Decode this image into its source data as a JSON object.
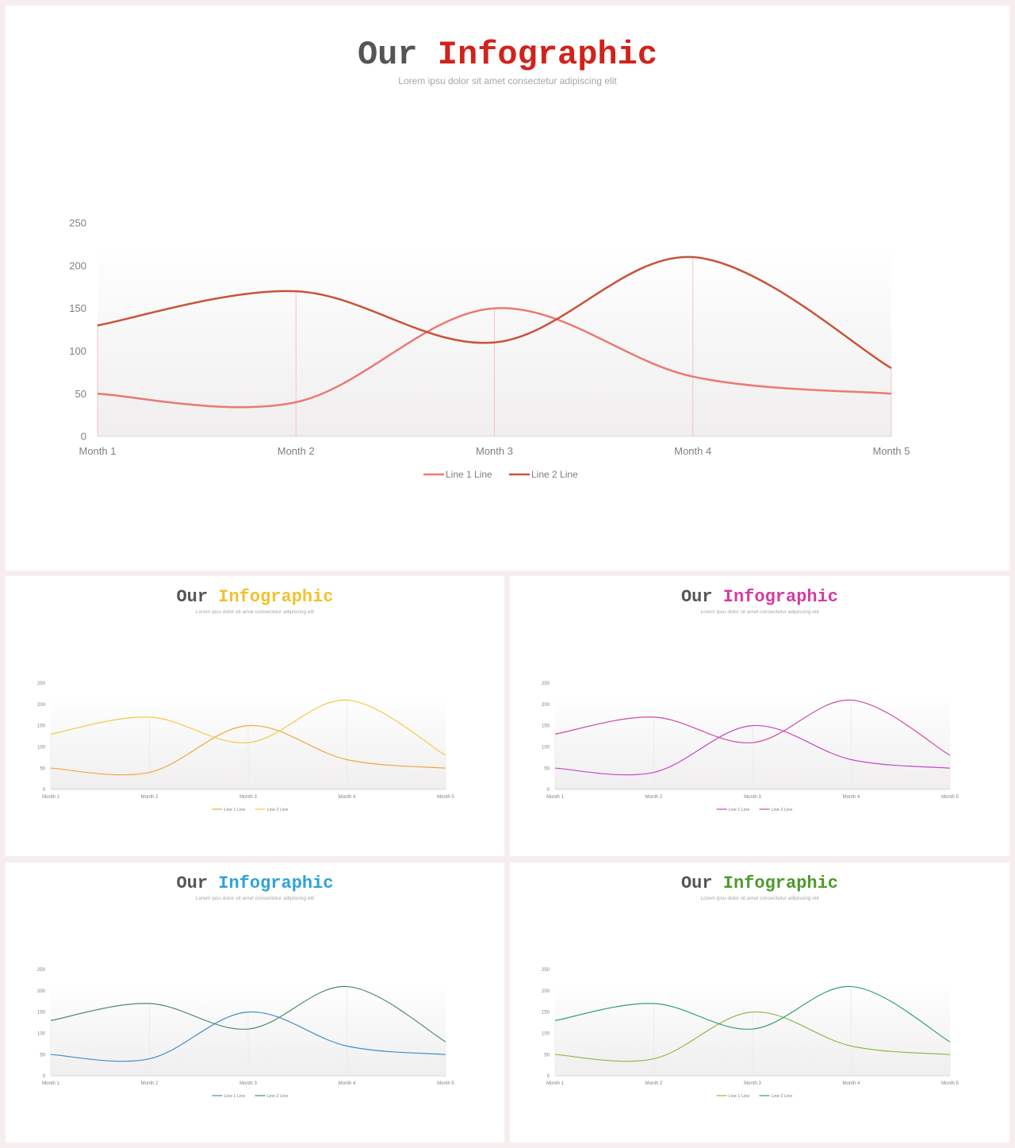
{
  "slides": [
    {
      "title_word1": "Our",
      "title_word2": "Infographic",
      "accent_color": "#d0231c",
      "subtitle": "Lorem ipsu dolor sit amet consectetur adipiscing elit",
      "chart_data": {
        "type": "line",
        "categories": [
          "Month 1",
          "Month 2",
          "Month 3",
          "Month 4",
          "Month 5"
        ],
        "series": [
          {
            "name": "Line 1 Line",
            "values": [
              50,
              40,
              150,
              70,
              50
            ],
            "color": "#ea7a72"
          },
          {
            "name": "Line 2 Line",
            "values": [
              130,
              170,
              110,
              210,
              80
            ],
            "color": "#c9533a"
          }
        ],
        "ylim": [
          0,
          250
        ],
        "yticks": [
          0,
          50,
          100,
          150,
          200,
          250
        ],
        "smooth": true,
        "legend": "bottom",
        "grid": false
      }
    },
    {
      "title_word1": "Our",
      "title_word2": "Infographic",
      "accent_color": "#f2c12e",
      "subtitle": "Lorem ipsu dolor sit amet consectetur adipiscing elit",
      "chart_data": {
        "type": "line",
        "categories": [
          "Month 1",
          "Month 2",
          "Month 3",
          "Month 4",
          "Month 5"
        ],
        "series": [
          {
            "name": "Line 1 Line",
            "values": [
              50,
              40,
              150,
              70,
              50
            ],
            "color": "#f0a640"
          },
          {
            "name": "Line 2 Line",
            "values": [
              130,
              170,
              110,
              210,
              80
            ],
            "color": "#f5c842"
          }
        ],
        "ylim": [
          0,
          250
        ],
        "yticks": [
          0,
          50,
          100,
          150,
          200,
          250
        ],
        "smooth": true,
        "legend": "bottom",
        "grid": false
      }
    },
    {
      "title_word1": "Our",
      "title_word2": "Infographic",
      "accent_color": "#d43aa3",
      "subtitle": "Lorem ipsu dolor sit amet consectetur adipiscing elit",
      "chart_data": {
        "type": "line",
        "categories": [
          "Month 1",
          "Month 2",
          "Month 3",
          "Month 4",
          "Month 5"
        ],
        "series": [
          {
            "name": "Line 1 Line",
            "values": [
              50,
              40,
              150,
              70,
              50
            ],
            "color": "#c447c9"
          },
          {
            "name": "Line 2 Line",
            "values": [
              130,
              170,
              110,
              210,
              80
            ],
            "color": "#cc4aa4"
          }
        ],
        "ylim": [
          0,
          250
        ],
        "yticks": [
          0,
          50,
          100,
          150,
          200,
          250
        ],
        "smooth": true,
        "legend": "bottom",
        "grid": false
      }
    },
    {
      "title_word1": "Our",
      "title_word2": "Infographic",
      "accent_color": "#2ea3d3",
      "subtitle": "Lorem ipsu dolor sit amet consectetur adipiscing elit",
      "chart_data": {
        "type": "line",
        "categories": [
          "Month 1",
          "Month 2",
          "Month 3",
          "Month 4",
          "Month 5"
        ],
        "series": [
          {
            "name": "Line 1 Line",
            "values": [
              50,
              40,
              150,
              70,
              50
            ],
            "color": "#3d8fc8"
          },
          {
            "name": "Line 2 Line",
            "values": [
              130,
              170,
              110,
              210,
              80
            ],
            "color": "#4f8b65"
          }
        ],
        "ylim": [
          0,
          250
        ],
        "yticks": [
          0,
          50,
          100,
          150,
          200,
          250
        ],
        "smooth": true,
        "legend": "bottom",
        "grid": false
      }
    },
    {
      "title_word1": "Our",
      "title_word2": "Infographic",
      "accent_color": "#4e9a2c",
      "subtitle": "Lorem ipsu dolor sit amet consectetur adipiscing elit",
      "chart_data": {
        "type": "line",
        "categories": [
          "Month 1",
          "Month 2",
          "Month 3",
          "Month 4",
          "Month 5"
        ],
        "series": [
          {
            "name": "Line 1 Line",
            "values": [
              50,
              40,
              150,
              70,
              50
            ],
            "color": "#8dba4a"
          },
          {
            "name": "Line 2 Line",
            "values": [
              130,
              170,
              110,
              210,
              80
            ],
            "color": "#2fa36a"
          }
        ],
        "ylim": [
          0,
          250
        ],
        "yticks": [
          0,
          50,
          100,
          150,
          200,
          250
        ],
        "smooth": true,
        "legend": "bottom",
        "grid": false
      }
    }
  ]
}
